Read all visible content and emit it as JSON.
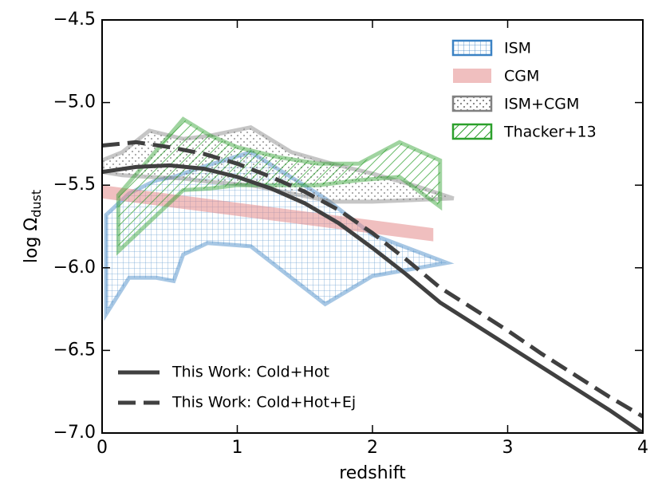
{
  "chart_data": {
    "type": "line",
    "xlabel": "redshift",
    "ylabel": {
      "main": "log Ω",
      "sub": "dust"
    },
    "xlim": [
      0,
      4
    ],
    "ylim": [
      -7.0,
      -4.5
    ],
    "xticks": [
      0,
      1,
      2,
      3,
      4
    ],
    "yticks": [
      {
        "value": -7.0,
        "label": "−7.0"
      },
      {
        "value": -6.5,
        "label": "−6.5"
      },
      {
        "value": -6.0,
        "label": "−6.0"
      },
      {
        "value": -5.5,
        "label": "−5.5"
      },
      {
        "value": -5.0,
        "label": "−5.0"
      },
      {
        "value": -4.5,
        "label": "−4.5"
      }
    ],
    "bands": [
      {
        "name": "ISM",
        "color": "#3b82c4",
        "hatch": "grid",
        "x": [
          0.03,
          0.2,
          0.4,
          0.53,
          0.6,
          0.78,
          1.1,
          1.65,
          2.0,
          2.55
        ],
        "upper": [
          -5.68,
          -5.55,
          -5.47,
          -5.45,
          -5.43,
          -5.38,
          -5.3,
          -5.58,
          -5.8,
          -5.97
        ],
        "lower": [
          -6.28,
          -6.06,
          -6.06,
          -6.08,
          -5.92,
          -5.85,
          -5.87,
          -6.22,
          -6.05,
          -5.97
        ]
      },
      {
        "name": "CGM",
        "color": "#e48a8a",
        "hatch": "none",
        "x": [
          0,
          2.45
        ],
        "upper": [
          -5.5,
          -5.76
        ],
        "lower": [
          -5.58,
          -5.84
        ]
      },
      {
        "name": "ISM+CGM",
        "color": "#808080",
        "hatch": "dots",
        "x": [
          0,
          0.15,
          0.35,
          0.6,
          0.8,
          1.1,
          1.4,
          1.7,
          2.0,
          2.3,
          2.6
        ],
        "upper": [
          -5.35,
          -5.3,
          -5.17,
          -5.22,
          -5.2,
          -5.15,
          -5.3,
          -5.37,
          -5.43,
          -5.5,
          -5.58
        ],
        "lower": [
          -5.42,
          -5.44,
          -5.45,
          -5.46,
          -5.48,
          -5.5,
          -5.55,
          -5.6,
          -5.6,
          -5.59,
          -5.58
        ]
      },
      {
        "name": "Thacker+13",
        "color": "#2ca02c",
        "hatch": "diagonal",
        "x": [
          0.12,
          0.6,
          0.8,
          1.0,
          1.3,
          1.6,
          1.9,
          2.2,
          2.5
        ],
        "upper": [
          -5.56,
          -5.1,
          -5.2,
          -5.27,
          -5.33,
          -5.37,
          -5.37,
          -5.24,
          -5.35
        ],
        "lower": [
          -5.9,
          -5.53,
          -5.52,
          -5.5,
          -5.5,
          -5.5,
          -5.47,
          -5.45,
          -5.63
        ]
      }
    ],
    "band_legend": "upper right",
    "x": [
      0,
      0.25,
      0.5,
      0.75,
      1,
      1.25,
      1.5,
      1.75,
      2,
      2.25,
      2.5,
      2.75,
      3,
      3.25,
      3.5,
      3.75,
      4
    ],
    "series": [
      {
        "name": "This Work: Cold+Hot",
        "color": "#404040",
        "dash": "solid",
        "values": [
          -5.42,
          -5.39,
          -5.38,
          -5.4,
          -5.45,
          -5.52,
          -5.61,
          -5.73,
          -5.88,
          -6.04,
          -6.21,
          -6.34,
          -6.47,
          -6.6,
          -6.73,
          -6.86,
          -7.0
        ]
      },
      {
        "name": "This Work: Cold+Hot+Ej",
        "color": "#404040",
        "dash": "dashed",
        "values": [
          -5.26,
          -5.24,
          -5.27,
          -5.31,
          -5.37,
          -5.45,
          -5.54,
          -5.65,
          -5.79,
          -5.95,
          -6.12,
          -6.25,
          -6.38,
          -6.52,
          -6.65,
          -6.78,
          -6.9
        ]
      }
    ],
    "line_legend": "lower left"
  }
}
